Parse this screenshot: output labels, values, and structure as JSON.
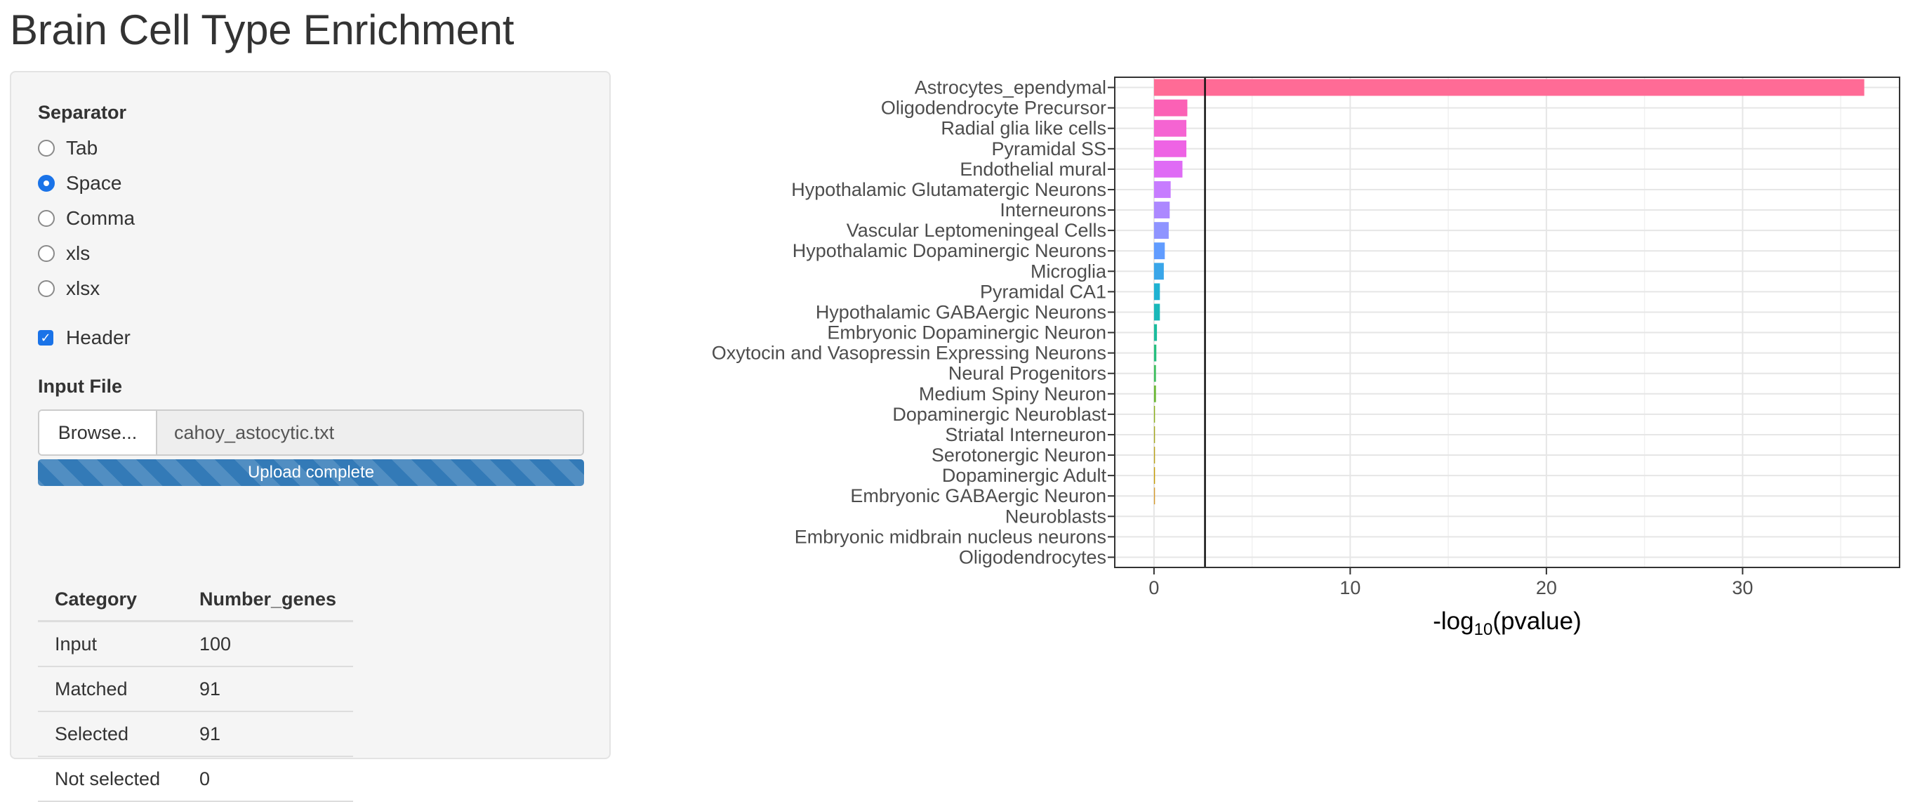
{
  "page": {
    "title": "Brain Cell Type Enrichment"
  },
  "sidebar": {
    "separator_label": "Separator",
    "separator_options": [
      {
        "label": "Tab",
        "selected": false
      },
      {
        "label": "Space",
        "selected": true
      },
      {
        "label": "Comma",
        "selected": false
      },
      {
        "label": "xls",
        "selected": false
      },
      {
        "label": "xlsx",
        "selected": false
      }
    ],
    "header_checkbox": {
      "label": "Header",
      "checked": true
    },
    "input_file_label": "Input File",
    "browse_button_label": "Browse...",
    "file_name": "cahoy_astocytic.txt",
    "upload_status": "Upload complete",
    "upload_progress": 1.0
  },
  "summary_table": {
    "columns": [
      "Category",
      "Number_genes"
    ],
    "rows": [
      [
        "Input",
        "100"
      ],
      [
        "Matched",
        "91"
      ],
      [
        "Selected",
        "91"
      ],
      [
        "Not selected",
        "0"
      ]
    ]
  },
  "chart_data": {
    "type": "bar",
    "orientation": "horizontal",
    "title": "",
    "xlabel": "-log10(pvalue)",
    "ylabel": "",
    "xlim": [
      -2,
      38
    ],
    "xticks": [
      0,
      10,
      20,
      30
    ],
    "threshold_line": 2.6,
    "grid": true,
    "categories": [
      "Astrocytes_ependymal",
      "Oligodendrocyte Precursor",
      "Radial glia like cells",
      "Pyramidal SS",
      "Endothelial mural",
      "Hypothalamic Glutamatergic Neurons",
      "Interneurons",
      "Vascular Leptomeningeal Cells",
      "Hypothalamic Dopaminergic Neurons",
      "Microglia",
      "Pyramidal CA1",
      "Hypothalamic GABAergic Neurons",
      "Embryonic Dopaminergic Neuron",
      "Oxytocin and Vasopressin Expressing Neurons",
      "Neural Progenitors",
      "Medium Spiny Neuron",
      "Dopaminergic Neuroblast",
      "Striatal Interneuron",
      "Serotonergic Neuron",
      "Dopaminergic Adult",
      "Embryonic GABAergic Neuron",
      "Neuroblasts",
      "Embryonic midbrain nucleus neurons",
      "Oligodendrocytes"
    ],
    "values": [
      36.2,
      1.7,
      1.65,
      1.65,
      1.45,
      0.85,
      0.8,
      0.75,
      0.55,
      0.5,
      0.3,
      0.3,
      0.15,
      0.12,
      0.1,
      0.1,
      0.05,
      0.05,
      0.05,
      0.05,
      0.05,
      0.0,
      0.0,
      0.0
    ],
    "colors": [
      "#ff6b96",
      "#fb61b5",
      "#f564d2",
      "#ee63e4",
      "#df6bf5",
      "#c77cff",
      "#ac88ff",
      "#8f94ff",
      "#619cff",
      "#3aa6e9",
      "#1fb2d2",
      "#19b8b9",
      "#1bbc9e",
      "#25bf7f",
      "#3ebf5f",
      "#6bb835",
      "#8aad18",
      "#a3a51b",
      "#b8a015",
      "#c49a00",
      "#d59a2c",
      "#e48c3e",
      "#f07f55",
      "#f8766d"
    ]
  }
}
